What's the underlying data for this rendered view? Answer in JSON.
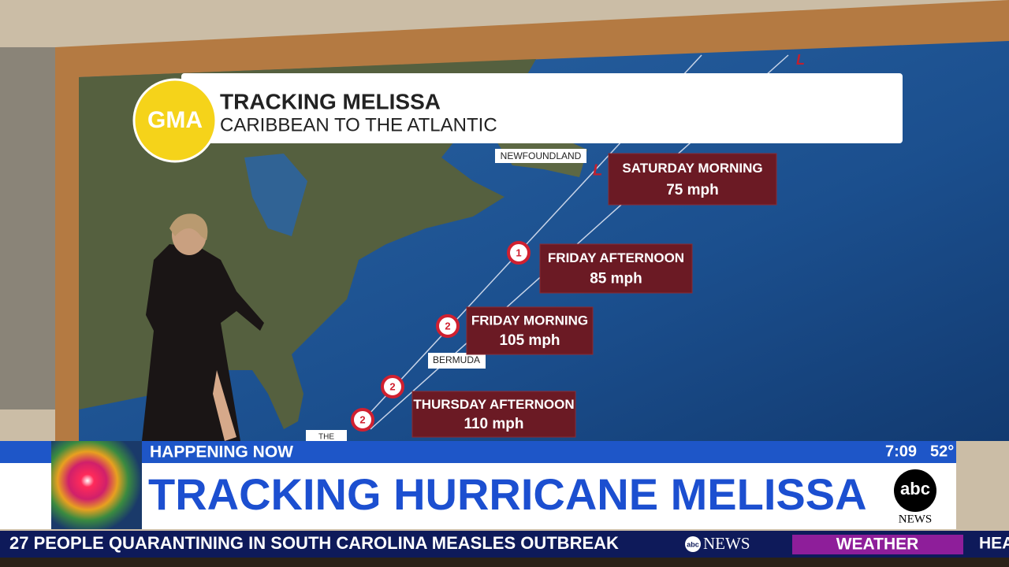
{
  "header": {
    "logo": "GMA",
    "title": "TRACKING MELISSA",
    "subtitle": "CARIBBEAN TO THE ATLANTIC"
  },
  "map": {
    "labels": [
      "NEWFOUNDLAND",
      "BERMUDA",
      "THE"
    ],
    "lows": [
      "L",
      "L"
    ],
    "storm_icons": [
      "1",
      "2",
      "2",
      "2"
    ],
    "forecasts": [
      {
        "time": "SATURDAY MORNING",
        "wind": "75 mph"
      },
      {
        "time": "FRIDAY AFTERNOON",
        "wind": "85 mph"
      },
      {
        "time": "FRIDAY MORNING",
        "wind": "105 mph"
      },
      {
        "time": "THURSDAY AFTERNOON",
        "wind": "110 mph"
      }
    ]
  },
  "lower_third": {
    "kicker": "HAPPENING NOW",
    "headline": "TRACKING HURRICANE MELISSA",
    "time": "7:09",
    "temperature": "52°",
    "network_logo": "abc",
    "network_name": "NEWS"
  },
  "ticker": {
    "headline": "27 PEOPLE QUARANTINING IN SOUTH CAROLINA MEASLES OUTBREAK",
    "logo_abc": "abc",
    "logo_news": "NEWS",
    "segment": "WEATHER",
    "next": "HEA"
  }
}
